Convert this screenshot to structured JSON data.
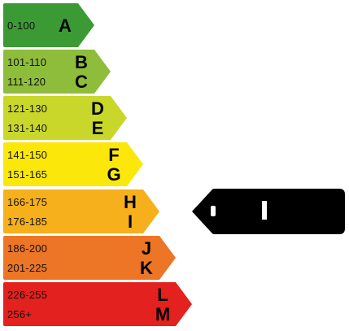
{
  "bands": [
    {
      "ranges": [
        "0-100"
      ],
      "letters": [
        "A"
      ],
      "color": "#3c9a35"
    },
    {
      "ranges": [
        "101-110",
        "111-120"
      ],
      "letters": [
        "B",
        "C"
      ],
      "color": "#8dbd3a"
    },
    {
      "ranges": [
        "121-130",
        "131-140"
      ],
      "letters": [
        "D",
        "E"
      ],
      "color": "#c9d72b"
    },
    {
      "ranges": [
        "141-150",
        "151-165"
      ],
      "letters": [
        "F",
        "G"
      ],
      "color": "#fbe80a"
    },
    {
      "ranges": [
        "166-175",
        "176-185"
      ],
      "letters": [
        "H",
        "I"
      ],
      "color": "#f6b01c"
    },
    {
      "ranges": [
        "186-200",
        "201-225"
      ],
      "letters": [
        "J",
        "K"
      ],
      "color": "#ec7526"
    },
    {
      "ranges": [
        "226-255",
        "256+"
      ],
      "letters": [
        "L",
        "M"
      ],
      "color": "#e3211f"
    }
  ],
  "indicator": {
    "color": "#000000",
    "points_to": "H-I"
  }
}
